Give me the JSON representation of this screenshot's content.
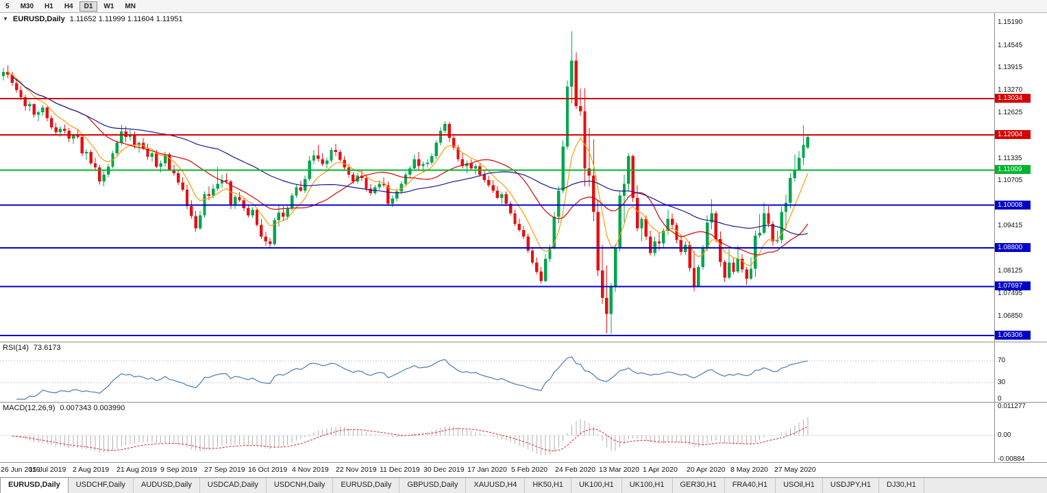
{
  "toolbar": {
    "timeframes": [
      "5",
      "M30",
      "H1",
      "H4",
      "D1",
      "W1",
      "MN"
    ],
    "active": "D1"
  },
  "chart_header": {
    "collapse_icon": "▼",
    "symbol": "EURUSD,Daily",
    "ohlc": "1.11652 1.11999 1.11604 1.11951"
  },
  "chart_data": {
    "type": "candlestick",
    "symbol": "EURUSD",
    "timeframe": "Daily",
    "price_range": [
      1.0615,
      1.1545
    ],
    "colors": {
      "up": "#00a54f",
      "down": "#e31212",
      "background": "#ffffff"
    },
    "axis_ticks": [
      "1.15190",
      "1.14545",
      "1.13915",
      "1.13270",
      "1.12625",
      "1.11335",
      "1.10705",
      "1.09415",
      "1.08125",
      "1.07495",
      "1.06850"
    ],
    "hlines": [
      {
        "price": 1.13034,
        "label": "1.13034",
        "color": "#d60000"
      },
      {
        "price": 1.12004,
        "label": "1.12004",
        "color": "#d60000"
      },
      {
        "price": 1.11009,
        "label": "1.11009",
        "color": "#00b32c"
      },
      {
        "price": 1.10008,
        "label": "1.10008",
        "color": "#0000c8"
      },
      {
        "price": 1.088,
        "label": "1.08800",
        "color": "#0000c8"
      },
      {
        "price": 1.07697,
        "label": "1.07697",
        "color": "#0000c8"
      },
      {
        "price": 1.06306,
        "label": "1.06306",
        "color": "#0000c8"
      }
    ],
    "moving_averages": [
      {
        "method": "ema",
        "period": 8,
        "color": "#ff9900"
      },
      {
        "method": "sma",
        "period": 20,
        "color": "#d40000"
      },
      {
        "method": "sma",
        "period": 50,
        "color": "#17178f"
      }
    ],
    "rsi": {
      "label": "RSI(14)",
      "value": "73.6173",
      "period": 14,
      "color": "#4a7ab5",
      "levels": [
        70,
        30
      ],
      "scale_labels": [
        "70",
        "30",
        "0"
      ]
    },
    "macd": {
      "label": "MACD(12,26,9)",
      "value": "0.007343 0.003990",
      "fast": 12,
      "slow": 26,
      "signal": 9,
      "hist_color": "#b2b2b2",
      "signal_color": "#e02020",
      "range": [
        -0.00884,
        0.011277
      ],
      "scale_labels": [
        "0.011277",
        "0.00",
        "-0.00884"
      ]
    },
    "dates": [
      "26 Jun 2019",
      "15 Jul 2019",
      "2 Aug 2019",
      "21 Aug 2019",
      "9 Sep 2019",
      "27 Sep 2019",
      "16 Oct 2019",
      "4 Nov 2019",
      "22 Nov 2019",
      "11 Dec 2019",
      "30 Dec 2019",
      "17 Jan 2020",
      "5 Feb 2020",
      "24 Feb 2020",
      "13 Mar 2020",
      "1 Apr 2020",
      "20 Apr 2020",
      "8 May 2020",
      "27 May 2020"
    ],
    "candles": [
      [
        1.1368,
        1.1391,
        1.1355,
        1.138
      ],
      [
        1.138,
        1.1398,
        1.1362,
        1.1372
      ],
      [
        1.1372,
        1.138,
        1.134,
        1.1348
      ],
      [
        1.1348,
        1.136,
        1.132,
        1.1328
      ],
      [
        1.1328,
        1.134,
        1.13,
        1.1308
      ],
      [
        1.1308,
        1.1315,
        1.127,
        1.1282
      ],
      [
        1.1282,
        1.1296,
        1.1268,
        1.1288
      ],
      [
        1.1288,
        1.129,
        1.125,
        1.1258
      ],
      [
        1.1258,
        1.127,
        1.124,
        1.1265
      ],
      [
        1.1265,
        1.1285,
        1.1255,
        1.1278
      ],
      [
        1.1278,
        1.1282,
        1.124,
        1.1248
      ],
      [
        1.1248,
        1.1255,
        1.1215,
        1.1222
      ],
      [
        1.1222,
        1.1235,
        1.12,
        1.1208
      ],
      [
        1.1208,
        1.1225,
        1.1195,
        1.1218
      ],
      [
        1.1218,
        1.123,
        1.1205,
        1.1212
      ],
      [
        1.1212,
        1.122,
        1.118,
        1.119
      ],
      [
        1.119,
        1.1205,
        1.1175,
        1.12
      ],
      [
        1.12,
        1.1215,
        1.119,
        1.1195
      ],
      [
        1.1195,
        1.12,
        1.114,
        1.1148
      ],
      [
        1.1148,
        1.116,
        1.113,
        1.1152
      ],
      [
        1.1152,
        1.1158,
        1.1115,
        1.112
      ],
      [
        1.112,
        1.1135,
        1.11,
        1.1108
      ],
      [
        1.1108,
        1.1115,
        1.106,
        1.1068
      ],
      [
        1.1068,
        1.1098,
        1.1055,
        1.1088
      ],
      [
        1.1088,
        1.1118,
        1.108,
        1.111
      ],
      [
        1.111,
        1.1155,
        1.1105,
        1.1148
      ],
      [
        1.1148,
        1.1185,
        1.114,
        1.1178
      ],
      [
        1.1178,
        1.123,
        1.117,
        1.121
      ],
      [
        1.121,
        1.1225,
        1.118,
        1.1195
      ],
      [
        1.1195,
        1.1218,
        1.1185,
        1.12
      ],
      [
        1.12,
        1.121,
        1.1162,
        1.117
      ],
      [
        1.117,
        1.1182,
        1.115,
        1.1178
      ],
      [
        1.1178,
        1.1192,
        1.1158,
        1.1162
      ],
      [
        1.1162,
        1.1175,
        1.113,
        1.1138
      ],
      [
        1.1138,
        1.1152,
        1.1125,
        1.1148
      ],
      [
        1.1148,
        1.1158,
        1.1105,
        1.111
      ],
      [
        1.111,
        1.1128,
        1.1095,
        1.112
      ],
      [
        1.112,
        1.1153,
        1.111,
        1.1145
      ],
      [
        1.1145,
        1.115,
        1.1098,
        1.1102
      ],
      [
        1.1102,
        1.1116,
        1.1085,
        1.1092
      ],
      [
        1.1092,
        1.1098,
        1.1058,
        1.1065
      ],
      [
        1.1065,
        1.108,
        1.104,
        1.1045
      ],
      [
        1.1045,
        1.106,
        1.099,
        1.0998
      ],
      [
        1.0998,
        1.1015,
        1.0962,
        1.097
      ],
      [
        1.097,
        1.0985,
        1.0925,
        1.0935
      ],
      [
        1.0935,
        1.0985,
        1.093,
        1.0972
      ],
      [
        1.0972,
        1.104,
        1.0965,
        1.1032
      ],
      [
        1.1032,
        1.1055,
        1.1015,
        1.1028
      ],
      [
        1.1028,
        1.106,
        1.102,
        1.1048
      ],
      [
        1.1048,
        1.111,
        1.1042,
        1.1062
      ],
      [
        1.1062,
        1.1088,
        1.105,
        1.1072
      ],
      [
        1.1072,
        1.1092,
        1.1062,
        1.1068
      ],
      [
        1.1068,
        1.1072,
        1.099,
        1.1002
      ],
      [
        1.1002,
        1.103,
        1.099,
        1.1025
      ],
      [
        1.1025,
        1.1038,
        1.101,
        1.1015
      ],
      [
        1.1015,
        1.1022,
        1.0985,
        1.0992
      ],
      [
        1.0992,
        1.1,
        1.0966,
        1.0972
      ],
      [
        1.0972,
        1.0995,
        1.0965,
        1.0988
      ],
      [
        1.0988,
        1.0992,
        1.094,
        1.0945
      ],
      [
        1.0945,
        1.0962,
        1.0905,
        1.0912
      ],
      [
        1.0912,
        1.0925,
        1.0885,
        1.0898
      ],
      [
        1.0898,
        1.0908,
        1.0879,
        1.089
      ],
      [
        1.089,
        1.0965,
        1.0885,
        1.0958
      ],
      [
        1.0958,
        1.0999,
        1.094,
        1.098
      ],
      [
        1.098,
        1.0998,
        1.0955,
        1.0968
      ],
      [
        1.0968,
        1.1,
        1.096,
        1.0992
      ],
      [
        1.0992,
        1.1035,
        1.0985,
        1.1028
      ],
      [
        1.1028,
        1.1062,
        1.1022,
        1.1052
      ],
      [
        1.1052,
        1.107,
        1.1038,
        1.1042
      ],
      [
        1.1042,
        1.1085,
        1.1035,
        1.1075
      ],
      [
        1.1075,
        1.114,
        1.107,
        1.1128
      ],
      [
        1.1128,
        1.1158,
        1.1118,
        1.1142
      ],
      [
        1.1142,
        1.1172,
        1.1125,
        1.1132
      ],
      [
        1.1132,
        1.1148,
        1.1112,
        1.1118
      ],
      [
        1.1118,
        1.1135,
        1.1105,
        1.1128
      ],
      [
        1.1128,
        1.1165,
        1.1122,
        1.1158
      ],
      [
        1.1158,
        1.1175,
        1.114,
        1.1152
      ],
      [
        1.1152,
        1.1158,
        1.1125,
        1.113
      ],
      [
        1.113,
        1.114,
        1.11,
        1.1108
      ],
      [
        1.1108,
        1.1118,
        1.108,
        1.1088
      ],
      [
        1.1088,
        1.1095,
        1.1062,
        1.1068
      ],
      [
        1.1068,
        1.1092,
        1.1062,
        1.1085
      ],
      [
        1.1085,
        1.1098,
        1.107,
        1.1078
      ],
      [
        1.1078,
        1.1085,
        1.104,
        1.1048
      ],
      [
        1.1048,
        1.1062,
        1.1028,
        1.1035
      ],
      [
        1.1035,
        1.1058,
        1.103,
        1.1052
      ],
      [
        1.1052,
        1.1072,
        1.1045,
        1.1062
      ],
      [
        1.1062,
        1.108,
        1.1052,
        1.1058
      ],
      [
        1.1058,
        1.1068,
        1.0998,
        1.1005
      ],
      [
        1.1005,
        1.1028,
        1.0995,
        1.102
      ],
      [
        1.102,
        1.1048,
        1.1012,
        1.104
      ],
      [
        1.104,
        1.1068,
        1.1032,
        1.1062
      ],
      [
        1.1062,
        1.1095,
        1.1055,
        1.1088
      ],
      [
        1.1088,
        1.1112,
        1.1078,
        1.1105
      ],
      [
        1.1105,
        1.1145,
        1.1098,
        1.1132
      ],
      [
        1.1132,
        1.1152,
        1.1102,
        1.1112
      ],
      [
        1.1112,
        1.1125,
        1.1095,
        1.1118
      ],
      [
        1.1118,
        1.1132,
        1.1108,
        1.1122
      ],
      [
        1.1122,
        1.1148,
        1.1115,
        1.114
      ],
      [
        1.114,
        1.1185,
        1.1132,
        1.1178
      ],
      [
        1.1178,
        1.1222,
        1.117,
        1.1212
      ],
      [
        1.1212,
        1.124,
        1.1205,
        1.1232
      ],
      [
        1.1232,
        1.1238,
        1.118,
        1.1192
      ],
      [
        1.1192,
        1.1198,
        1.1158,
        1.1165
      ],
      [
        1.1165,
        1.1172,
        1.1125,
        1.1132
      ],
      [
        1.1132,
        1.1148,
        1.1105,
        1.1112
      ],
      [
        1.1112,
        1.1128,
        1.1092,
        1.112
      ],
      [
        1.112,
        1.1132,
        1.1098,
        1.1105
      ],
      [
        1.1105,
        1.1118,
        1.1088,
        1.1112
      ],
      [
        1.1112,
        1.112,
        1.1082,
        1.1088
      ],
      [
        1.1088,
        1.1098,
        1.1065,
        1.1072
      ],
      [
        1.1072,
        1.1085,
        1.1052,
        1.1058
      ],
      [
        1.1058,
        1.1072,
        1.1035,
        1.1042
      ],
      [
        1.1042,
        1.1055,
        1.1018,
        1.1022
      ],
      [
        1.1022,
        1.1038,
        1.1005,
        1.1032
      ],
      [
        1.1032,
        1.104,
        1.0998,
        1.1005
      ],
      [
        1.1005,
        1.1012,
        1.0972,
        1.0978
      ],
      [
        1.0978,
        1.0988,
        1.0942,
        1.0948
      ],
      [
        1.0948,
        1.0962,
        1.0925,
        1.093
      ],
      [
        1.093,
        1.0942,
        1.0905,
        1.0912
      ],
      [
        1.0912,
        1.092,
        1.0865,
        1.0872
      ],
      [
        1.0872,
        1.0882,
        1.0832,
        1.0838
      ],
      [
        1.0838,
        1.0852,
        1.0805,
        1.0812
      ],
      [
        1.0812,
        1.0825,
        1.0778,
        1.0785
      ],
      [
        1.0785,
        1.0862,
        1.0782,
        1.0848
      ],
      [
        1.0848,
        1.0888,
        1.084,
        1.088
      ],
      [
        1.088,
        1.0982,
        1.0875,
        1.0968
      ],
      [
        1.0968,
        1.1055,
        1.095,
        1.1042
      ],
      [
        1.1042,
        1.1185,
        1.1035,
        1.1168
      ],
      [
        1.1168,
        1.1355,
        1.116,
        1.1338
      ],
      [
        1.1338,
        1.1495,
        1.129,
        1.1412
      ],
      [
        1.1412,
        1.1435,
        1.1275,
        1.1282
      ],
      [
        1.1282,
        1.1332,
        1.1255,
        1.1268
      ],
      [
        1.1268,
        1.1333,
        1.1055,
        1.1105
      ],
      [
        1.1105,
        1.122,
        1.1054,
        1.1085
      ],
      [
        1.1085,
        1.1188,
        1.0955,
        1.0982
      ],
      [
        1.0982,
        1.1015,
        1.08,
        1.0815
      ],
      [
        1.0815,
        1.0888,
        1.072,
        1.0738
      ],
      [
        1.0738,
        1.083,
        1.0636,
        1.0692
      ],
      [
        1.0692,
        1.078,
        1.0635,
        1.0768
      ],
      [
        1.0768,
        1.089,
        1.0755,
        1.0878
      ],
      [
        1.0878,
        1.104,
        1.087,
        1.1028
      ],
      [
        1.1028,
        1.1088,
        1.0952,
        1.1062
      ],
      [
        1.1062,
        1.1148,
        1.104,
        1.114
      ],
      [
        1.114,
        1.1144,
        1.101,
        1.1022
      ],
      [
        1.1022,
        1.1058,
        1.0926,
        1.0935
      ],
      [
        1.0935,
        1.0968,
        1.0898,
        1.0962
      ],
      [
        1.0962,
        1.0972,
        1.0902,
        1.0912
      ],
      [
        1.0912,
        1.0928,
        1.0858,
        1.0865
      ],
      [
        1.0865,
        1.0912,
        1.0855,
        1.0898
      ],
      [
        1.0898,
        1.0922,
        1.0872,
        1.0892
      ],
      [
        1.0892,
        1.0935,
        1.0882,
        1.0928
      ],
      [
        1.0928,
        1.0988,
        1.0918,
        1.0962
      ],
      [
        1.0962,
        1.0978,
        1.0932,
        1.0945
      ],
      [
        1.0945,
        1.0952,
        1.0892,
        1.0902
      ],
      [
        1.0902,
        1.0918,
        1.0858,
        1.0868
      ],
      [
        1.0868,
        1.0898,
        1.086,
        1.0888
      ],
      [
        1.0888,
        1.0898,
        1.0812,
        1.0822
      ],
      [
        1.0822,
        1.087,
        1.0756,
        1.0772
      ],
      [
        1.0772,
        1.0832,
        1.0768,
        1.0825
      ],
      [
        1.0825,
        1.0888,
        1.0818,
        1.0878
      ],
      [
        1.0878,
        1.0972,
        1.087,
        1.0952
      ],
      [
        1.0952,
        1.1018,
        1.0932,
        1.0978
      ],
      [
        1.0978,
        1.0985,
        1.0895,
        1.0905
      ],
      [
        1.0905,
        1.0926,
        1.0826,
        1.084
      ],
      [
        1.084,
        1.0845,
        1.0782,
        1.0795
      ],
      [
        1.0795,
        1.0876,
        1.079,
        1.0838
      ],
      [
        1.0838,
        1.0852,
        1.0805,
        1.0812
      ],
      [
        1.0812,
        1.0885,
        1.0808,
        1.0848
      ],
      [
        1.0848,
        1.0862,
        1.081,
        1.0818
      ],
      [
        1.0818,
        1.0825,
        1.0775,
        1.0792
      ],
      [
        1.0792,
        1.0852,
        1.0788,
        1.082
      ],
      [
        1.082,
        1.0928,
        1.0797,
        1.0915
      ],
      [
        1.0915,
        1.0976,
        1.0908,
        1.0922
      ],
      [
        1.0922,
        1.1008,
        1.0918,
        1.0978
      ],
      [
        1.0978,
        1.0998,
        1.0938,
        1.0948
      ],
      [
        1.0948,
        1.0955,
        1.0885,
        1.0898
      ],
      [
        1.0898,
        1.0928,
        1.0892,
        1.0902
      ],
      [
        1.0902,
        1.0996,
        1.0892,
        1.0982
      ],
      [
        1.0982,
        1.103,
        1.0934,
        1.1008
      ],
      [
        1.1008,
        1.1092,
        1.0992,
        1.1078
      ],
      [
        1.1078,
        1.1145,
        1.1068,
        1.1102
      ],
      [
        1.1102,
        1.1155,
        1.1098,
        1.1135
      ],
      [
        1.1135,
        1.1228,
        1.1115,
        1.1172
      ],
      [
        1.1165,
        1.12,
        1.116,
        1.1195
      ]
    ]
  },
  "tabs": {
    "active_index": 0,
    "items": [
      "EURUSD,Daily",
      "USDCHF,Daily",
      "AUDUSD,Daily",
      "USDCAD,Daily",
      "USDCNH,Daily",
      "EURUSD,Daily",
      "GBPUSD,Daily",
      "XAUUSD,H4",
      "HK50,H1",
      "UK100,H1",
      "UK100,H1",
      "GER30,H1",
      "FRA40,H1",
      "USOil,H1",
      "USDJPY,H1",
      "DJ30,H1"
    ]
  }
}
